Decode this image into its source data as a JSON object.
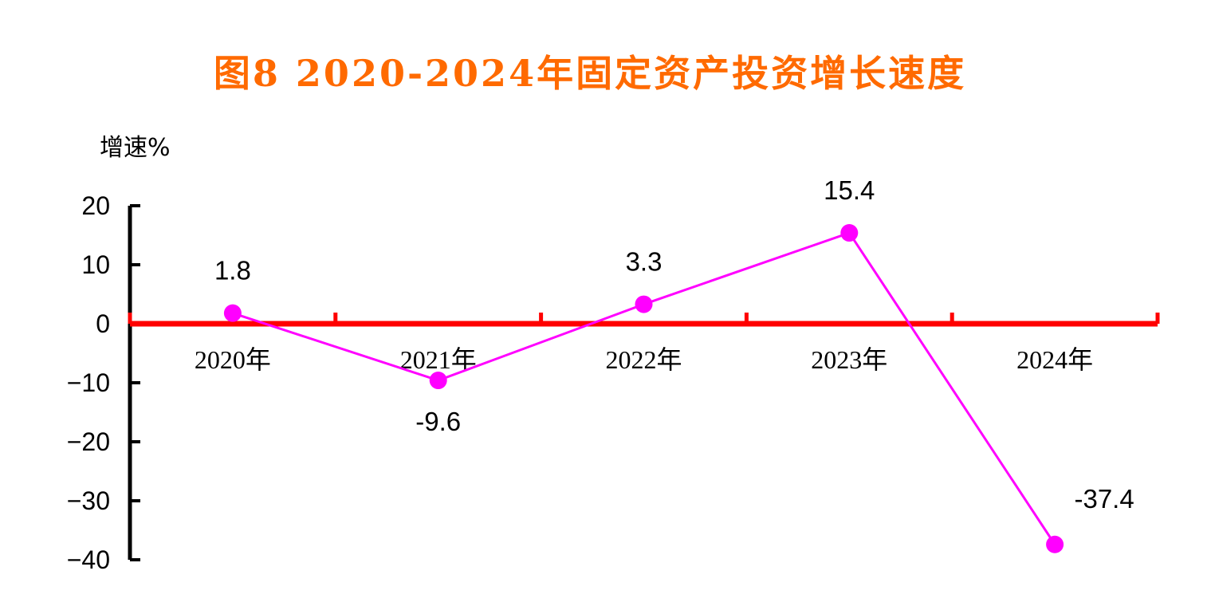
{
  "colors": {
    "title": "#FF6A00",
    "zero_axis": "#FF0000",
    "y_axis": "#000000",
    "series": "#FF00FF",
    "text": "#000000"
  },
  "chart_data": {
    "type": "line",
    "title": "图8   2020-2024年固定资产投资增长速度",
    "ylabel": "增速%",
    "xlabel": "",
    "categories": [
      "2020年",
      "2021年",
      "2022年",
      "2023年",
      "2024年"
    ],
    "series": [
      {
        "values": [
          1.8,
          -9.6,
          3.3,
          15.4,
          -37.4
        ]
      }
    ],
    "data_labels": [
      "1.8",
      "-9.6",
      "3.3",
      "15.4",
      "-37.4"
    ],
    "ylim": [
      -40,
      20
    ],
    "yticks": [
      20,
      10,
      0,
      -10,
      -20,
      -30,
      -40
    ],
    "ytick_labels": [
      "20",
      "10",
      "0",
      "−10",
      "−20",
      "−30",
      "−40"
    ],
    "grid": false,
    "legend": "none",
    "marker": "circle"
  }
}
